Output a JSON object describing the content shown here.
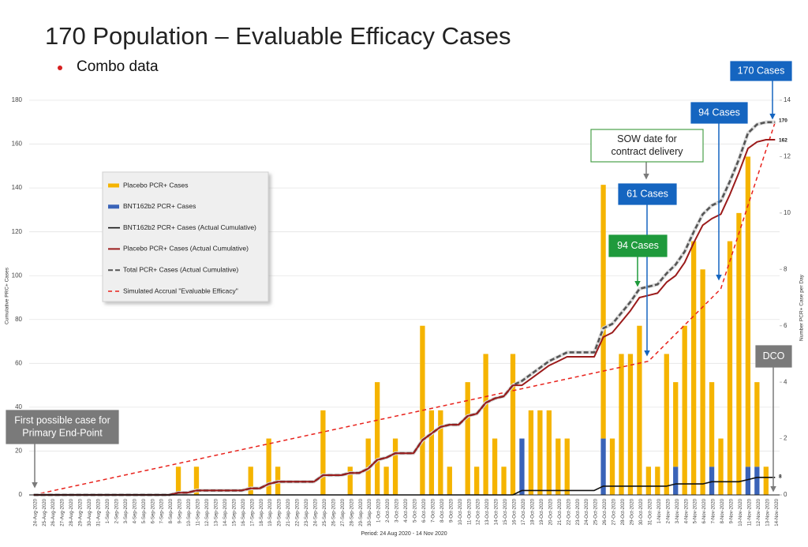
{
  "chart_data": {
    "type": "combo",
    "title": "170 Population – Evaluable Efficacy Cases",
    "subtitle": "Combo data",
    "ylabel": "Cumulative PRC+ Cases",
    "y2label": "Number PCR+ Case per Day",
    "xlabel": "Period: 24 Aug 2020 - 14 Nov 2020",
    "ylim": [
      0,
      180
    ],
    "yticks": [
      0,
      20,
      40,
      60,
      80,
      100,
      120,
      140,
      160,
      180
    ],
    "y2lim": [
      0,
      14
    ],
    "y2ticks": [
      0,
      2,
      4,
      6,
      8,
      10,
      12,
      14
    ],
    "grid": true,
    "categories": [
      "24-Aug-2020",
      "25-Aug-2020",
      "26-Aug-2020",
      "27-Aug-2020",
      "28-Aug-2020",
      "29-Aug-2020",
      "30-Aug-2020",
      "31-Aug-2020",
      "1-Sep-2020",
      "2-Sep-2020",
      "3-Sep-2020",
      "4-Sep-2020",
      "5-Sep-2020",
      "6-Sep-2020",
      "7-Sep-2020",
      "8-Sep-2020",
      "9-Sep-2020",
      "10-Sep-2020",
      "11-Sep-2020",
      "12-Sep-2020",
      "13-Sep-2020",
      "14-Sep-2020",
      "15-Sep-2020",
      "16-Sep-2020",
      "17-Sep-2020",
      "18-Sep-2020",
      "19-Sep-2020",
      "20-Sep-2020",
      "21-Sep-2020",
      "22-Sep-2020",
      "23-Sep-2020",
      "24-Sep-2020",
      "25-Sep-2020",
      "26-Sep-2020",
      "27-Sep-2020",
      "28-Sep-2020",
      "29-Sep-2020",
      "30-Sep-2020",
      "1-Oct-2020",
      "2-Oct-2020",
      "3-Oct-2020",
      "4-Oct-2020",
      "5-Oct-2020",
      "6-Oct-2020",
      "7-Oct-2020",
      "8-Oct-2020",
      "9-Oct-2020",
      "10-Oct-2020",
      "11-Oct-2020",
      "12-Oct-2020",
      "13-Oct-2020",
      "14-Oct-2020",
      "15-Oct-2020",
      "16-Oct-2020",
      "17-Oct-2020",
      "18-Oct-2020",
      "19-Oct-2020",
      "20-Oct-2020",
      "21-Oct-2020",
      "22-Oct-2020",
      "23-Oct-2020",
      "24-Oct-2020",
      "25-Oct-2020",
      "26-Oct-2020",
      "27-Oct-2020",
      "28-Oct-2020",
      "29-Oct-2020",
      "30-Oct-2020",
      "31-Oct-2020",
      "1-Nov-2020",
      "2-Nov-2020",
      "3-Nov-2020",
      "4-Nov-2020",
      "5-Nov-2020",
      "6-Nov-2020",
      "7-Nov-2020",
      "8-Nov-2020",
      "9-Nov-2020",
      "10-Nov-2020",
      "11-Nov-2020",
      "12-Nov-2020",
      "13-Nov-2020",
      "14-Nov-2020"
    ],
    "series": [
      {
        "name": "Placebo PCR+ Cases",
        "type": "bar",
        "axis": "y2",
        "color": "#f5b400",
        "values": [
          0,
          0,
          0,
          0,
          0,
          0,
          0,
          0,
          0,
          0,
          0,
          0,
          0,
          0,
          0,
          0,
          1,
          0,
          1,
          0,
          0,
          0,
          0,
          0,
          1,
          0,
          2,
          1,
          0,
          0,
          0,
          0,
          3,
          0,
          0,
          1,
          0,
          2,
          4,
          1,
          2,
          0,
          0,
          6,
          3,
          3,
          1,
          0,
          4,
          1,
          5,
          2,
          1,
          5,
          0,
          3,
          3,
          3,
          2,
          2,
          0,
          0,
          0,
          9,
          2,
          5,
          5,
          6,
          1,
          1,
          5,
          3,
          6,
          9,
          8,
          3,
          2,
          9,
          10,
          11,
          3,
          1,
          0
        ]
      },
      {
        "name": "BNT162b2 PCR+ Cases",
        "type": "bar",
        "axis": "y2",
        "color": "#3a63b8",
        "values": [
          0,
          0,
          0,
          0,
          0,
          0,
          0,
          0,
          0,
          0,
          0,
          0,
          0,
          0,
          0,
          0,
          0,
          0,
          0,
          0,
          0,
          0,
          0,
          0,
          0,
          0,
          0,
          0,
          0,
          0,
          0,
          0,
          0,
          0,
          0,
          0,
          0,
          0,
          0,
          0,
          0,
          0,
          0,
          0,
          0,
          0,
          0,
          0,
          0,
          0,
          0,
          0,
          0,
          0,
          2,
          0,
          0,
          0,
          0,
          0,
          0,
          0,
          0,
          2,
          0,
          0,
          0,
          0,
          0,
          0,
          0,
          1,
          0,
          0,
          0,
          1,
          0,
          0,
          0,
          1,
          1,
          0,
          0
        ]
      },
      {
        "name": "BNT162b2 PCR+ Cases (Actual Cumulative)",
        "type": "line",
        "color": "#111111",
        "dash": false,
        "values": [
          0,
          0,
          0,
          0,
          0,
          0,
          0,
          0,
          0,
          0,
          0,
          0,
          0,
          0,
          0,
          0,
          0,
          0,
          0,
          0,
          0,
          0,
          0,
          0,
          0,
          0,
          0,
          0,
          0,
          0,
          0,
          0,
          0,
          0,
          0,
          0,
          0,
          0,
          0,
          0,
          0,
          0,
          0,
          0,
          0,
          0,
          0,
          0,
          0,
          0,
          0,
          0,
          0,
          0,
          2,
          2,
          2,
          2,
          2,
          2,
          2,
          2,
          2,
          4,
          4,
          4,
          4,
          4,
          4,
          4,
          4,
          5,
          5,
          5,
          5,
          6,
          6,
          6,
          6,
          7,
          8,
          8,
          8
        ]
      },
      {
        "name": "Placebo PCR+ Cases (Actual Cumulative)",
        "type": "line",
        "color": "#9b1b1b",
        "dash": false,
        "values": [
          0,
          0,
          0,
          0,
          0,
          0,
          0,
          0,
          0,
          0,
          0,
          0,
          0,
          0,
          0,
          0,
          1,
          1,
          2,
          2,
          2,
          2,
          2,
          2,
          3,
          3,
          5,
          6,
          6,
          6,
          6,
          6,
          9,
          9,
          9,
          10,
          10,
          12,
          16,
          17,
          19,
          19,
          19,
          25,
          28,
          31,
          32,
          32,
          36,
          37,
          42,
          44,
          45,
          50,
          50,
          53,
          56,
          59,
          61,
          63,
          63,
          63,
          63,
          72,
          74,
          79,
          84,
          90,
          91,
          92,
          97,
          100,
          106,
          115,
          123,
          126,
          128,
          137,
          147,
          158,
          161,
          162,
          162
        ]
      },
      {
        "name": "Total PCR+ Cases (Actual Cumulative)",
        "type": "line",
        "color": "#555555",
        "dash": true,
        "values": [
          0,
          0,
          0,
          0,
          0,
          0,
          0,
          0,
          0,
          0,
          0,
          0,
          0,
          0,
          0,
          0,
          1,
          1,
          2,
          2,
          2,
          2,
          2,
          2,
          3,
          3,
          5,
          6,
          6,
          6,
          6,
          6,
          9,
          9,
          9,
          10,
          10,
          12,
          16,
          17,
          19,
          19,
          19,
          25,
          28,
          31,
          32,
          32,
          36,
          37,
          42,
          44,
          45,
          50,
          52,
          55,
          58,
          61,
          63,
          65,
          65,
          65,
          65,
          76,
          78,
          83,
          88,
          94,
          95,
          96,
          101,
          105,
          111,
          120,
          128,
          132,
          134,
          143,
          153,
          165,
          169,
          170,
          170
        ]
      },
      {
        "name": "Simulated Accrual \"Evaluable Efficacy\"",
        "type": "line",
        "color": "#e8221c",
        "dash": true,
        "x": [
          "24-Aug-2020",
          "31-Oct-2020",
          "8-Nov-2020",
          "14-Nov-2020"
        ],
        "values": [
          0,
          61,
          94,
          170
        ]
      }
    ],
    "annotations": [
      {
        "lines": [
          "170 Cases"
        ],
        "style": "blue"
      },
      {
        "lines": [
          "94 Cases"
        ],
        "style": "blue"
      },
      {
        "lines": [
          "SOW date for",
          "contract delivery"
        ],
        "style": "outline"
      },
      {
        "lines": [
          "61 Cases"
        ],
        "style": "blue"
      },
      {
        "lines": [
          "94 Cases"
        ],
        "style": "green"
      },
      {
        "lines": [
          "DCO"
        ],
        "style": "gray"
      },
      {
        "lines": [
          "First possible case for",
          "Primary End-Point"
        ],
        "style": "gray"
      }
    ]
  }
}
